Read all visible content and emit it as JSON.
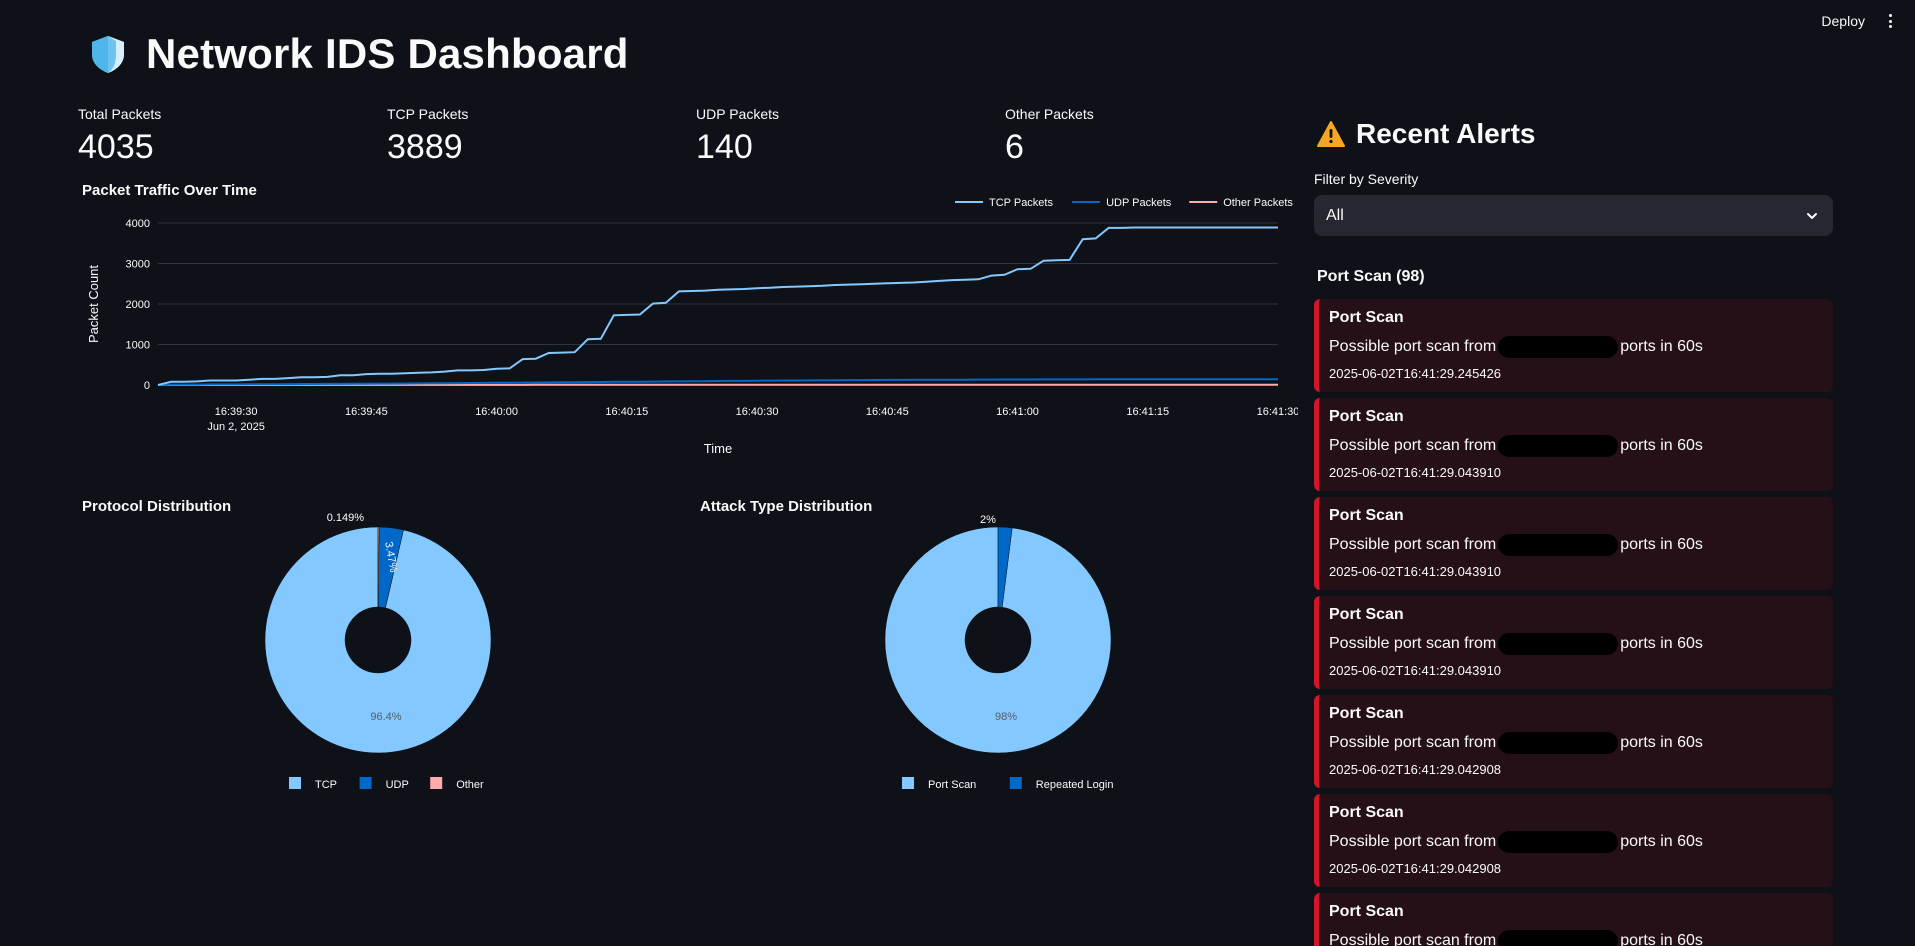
{
  "topbar": {
    "deploy_label": "Deploy"
  },
  "page": {
    "title": "Network IDS Dashboard"
  },
  "metrics": [
    {
      "label": "Total Packets",
      "value": "4035"
    },
    {
      "label": "TCP Packets",
      "value": "3889"
    },
    {
      "label": "UDP Packets",
      "value": "140"
    },
    {
      "label": "Other Packets",
      "value": "6"
    }
  ],
  "colors": {
    "tcp": "#83c9ff",
    "udp": "#0068c9",
    "other": "#ffabab",
    "alert_border": "#d21528",
    "alert_bg": "#261017"
  },
  "chart_data": [
    {
      "type": "line",
      "title": "Packet Traffic Over Time",
      "xlabel": "Time",
      "ylabel": "Packet Count",
      "x_start": "16:39:21",
      "x_end": "16:41:30",
      "x_ticks": [
        {
          "t": 9,
          "label": "16:39:30",
          "sublabel": "Jun 2, 2025"
        },
        {
          "t": 24,
          "label": "16:39:45"
        },
        {
          "t": 39,
          "label": "16:40:00"
        },
        {
          "t": 54,
          "label": "16:40:15"
        },
        {
          "t": 69,
          "label": "16:40:30"
        },
        {
          "t": 84,
          "label": "16:40:45"
        },
        {
          "t": 99,
          "label": "16:41:00"
        },
        {
          "t": 114,
          "label": "16:41:15"
        },
        {
          "t": 129,
          "label": "16:41:30"
        }
      ],
      "ylim": [
        0,
        4000
      ],
      "y_ticks": [
        0,
        1000,
        2000,
        3000,
        4000
      ],
      "legend": [
        "TCP Packets",
        "UDP Packets",
        "Other Packets"
      ],
      "x": [
        0,
        1.5,
        3,
        4.5,
        6,
        7.5,
        9,
        10.5,
        12,
        13.5,
        15,
        16.5,
        18,
        19.5,
        21,
        22.5,
        24,
        25.5,
        27,
        28.5,
        30,
        31.5,
        33,
        34.5,
        36,
        37.5,
        39,
        40.5,
        42,
        43.5,
        45,
        46.5,
        48,
        49.5,
        51,
        52.5,
        54,
        55.5,
        57,
        58.5,
        60,
        61.5,
        63,
        64.5,
        66,
        67.5,
        69,
        70.5,
        72,
        73.5,
        75,
        76.5,
        78,
        79.5,
        81,
        82.5,
        84,
        85.5,
        87,
        88.5,
        90,
        91.5,
        93,
        94.5,
        96,
        97.5,
        99,
        100.5,
        102,
        103.5,
        105,
        106.5,
        108,
        109.5,
        111,
        112.5,
        114,
        115.5,
        117,
        118.5,
        120,
        121.5,
        123,
        124.5,
        126,
        127.5,
        129
      ],
      "series": [
        {
          "name": "TCP Packets",
          "values": [
            0,
            80,
            80,
            90,
            110,
            110,
            110,
            130,
            150,
            150,
            170,
            190,
            190,
            200,
            240,
            240,
            270,
            280,
            280,
            290,
            300,
            310,
            330,
            360,
            360,
            370,
            400,
            410,
            640,
            650,
            790,
            800,
            810,
            1130,
            1140,
            1720,
            1730,
            1740,
            2010,
            2030,
            2310,
            2320,
            2330,
            2350,
            2360,
            2370,
            2390,
            2400,
            2420,
            2430,
            2440,
            2450,
            2470,
            2480,
            2490,
            2500,
            2510,
            2520,
            2530,
            2550,
            2570,
            2590,
            2600,
            2610,
            2700,
            2720,
            2860,
            2870,
            3070,
            3080,
            3090,
            3600,
            3620,
            3880,
            3880,
            3889,
            3889,
            3889,
            3889,
            3889,
            3889,
            3889,
            3889,
            3889,
            3889,
            3889,
            3889
          ]
        },
        {
          "name": "UDP Packets",
          "values": [
            0,
            10,
            10,
            10,
            15,
            15,
            15,
            18,
            20,
            20,
            22,
            24,
            25,
            26,
            28,
            30,
            32,
            34,
            35,
            37,
            40,
            42,
            45,
            48,
            50,
            52,
            55,
            58,
            60,
            62,
            65,
            68,
            70,
            72,
            75,
            78,
            80,
            82,
            85,
            88,
            90,
            92,
            95,
            98,
            100,
            102,
            105,
            108,
            110,
            112,
            114,
            116,
            118,
            120,
            122,
            124,
            125,
            126,
            128,
            129,
            130,
            131,
            132,
            133,
            134,
            135,
            136,
            137,
            138,
            138,
            139,
            139,
            140,
            140,
            140,
            140,
            140,
            140,
            140,
            140,
            140,
            140,
            140,
            140,
            140,
            140,
            140
          ]
        },
        {
          "name": "Other Packets",
          "values": [
            0,
            1,
            1,
            1,
            1,
            1,
            1,
            1,
            1,
            1,
            2,
            2,
            2,
            2,
            2,
            2,
            2,
            2,
            2,
            3,
            3,
            3,
            3,
            3,
            3,
            3,
            3,
            3,
            3,
            4,
            4,
            4,
            4,
            4,
            4,
            4,
            4,
            4,
            4,
            4,
            4,
            4,
            5,
            5,
            5,
            5,
            5,
            5,
            5,
            5,
            5,
            5,
            5,
            5,
            5,
            5,
            5,
            5,
            5,
            5,
            5,
            6,
            6,
            6,
            6,
            6,
            6,
            6,
            6,
            6,
            6,
            6,
            6,
            6,
            6,
            6,
            6,
            6,
            6,
            6,
            6,
            6,
            6,
            6,
            6,
            6,
            6
          ]
        }
      ]
    },
    {
      "type": "pie",
      "title": "Protocol Distribution",
      "labels": [
        "TCP",
        "UDP",
        "Other"
      ],
      "values": [
        96.4,
        3.47,
        0.149
      ],
      "value_labels": [
        "96.4%",
        "3.47%",
        "0.149%"
      ]
    },
    {
      "type": "pie",
      "title": "Attack Type Distribution",
      "labels": [
        "Port Scan",
        "Repeated Login"
      ],
      "values": [
        98,
        2
      ],
      "value_labels": [
        "98%",
        "2%"
      ]
    }
  ],
  "alerts_panel": {
    "title": "Recent Alerts",
    "filter_label": "Filter by Severity",
    "filter_value": "All",
    "group_title": "Port Scan (98)",
    "alerts": [
      {
        "title": "Port Scan",
        "desc_prefix": "Possible port scan from",
        "desc_suffix": "ports in 60s",
        "time": "2025-06-02T16:41:29.245426"
      },
      {
        "title": "Port Scan",
        "desc_prefix": "Possible port scan from",
        "desc_suffix": "ports in 60s",
        "time": "2025-06-02T16:41:29.043910"
      },
      {
        "title": "Port Scan",
        "desc_prefix": "Possible port scan from",
        "desc_suffix": "ports in 60s",
        "time": "2025-06-02T16:41:29.043910"
      },
      {
        "title": "Port Scan",
        "desc_prefix": "Possible port scan from",
        "desc_suffix": "ports in 60s",
        "time": "2025-06-02T16:41:29.043910"
      },
      {
        "title": "Port Scan",
        "desc_prefix": "Possible port scan from",
        "desc_suffix": "ports in 60s",
        "time": "2025-06-02T16:41:29.042908"
      },
      {
        "title": "Port Scan",
        "desc_prefix": "Possible port scan from",
        "desc_suffix": "ports in 60s",
        "time": "2025-06-02T16:41:29.042908"
      },
      {
        "title": "Port Scan",
        "desc_prefix": "Possible port scan from",
        "desc_suffix": "ports in 60s",
        "time": ""
      }
    ]
  }
}
